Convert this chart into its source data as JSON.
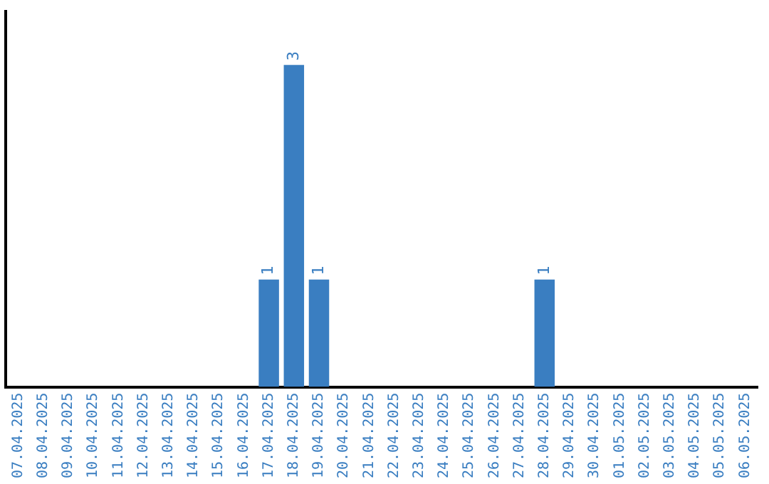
{
  "chart_data": {
    "type": "bar",
    "categories": [
      "07.04.2025",
      "08.04.2025",
      "09.04.2025",
      "10.04.2025",
      "11.04.2025",
      "12.04.2025",
      "13.04.2025",
      "14.04.2025",
      "15.04.2025",
      "16.04.2025",
      "17.04.2025",
      "18.04.2025",
      "19.04.2025",
      "20.04.2025",
      "21.04.2025",
      "22.04.2025",
      "23.04.2025",
      "24.04.2025",
      "25.04.2025",
      "26.04.2025",
      "27.04.2025",
      "28.04.2025",
      "29.04.2025",
      "30.04.2025",
      "01.05.2025",
      "02.05.2025",
      "03.05.2025",
      "04.05.2025",
      "05.05.2025",
      "06.05.2025"
    ],
    "values": [
      0,
      0,
      0,
      0,
      0,
      0,
      0,
      0,
      0,
      0,
      1,
      3,
      1,
      0,
      0,
      0,
      0,
      0,
      0,
      0,
      0,
      1,
      0,
      0,
      0,
      0,
      0,
      0,
      0,
      0
    ],
    "value_labels": [
      null,
      null,
      null,
      null,
      null,
      null,
      null,
      null,
      null,
      null,
      "1",
      "3",
      "1",
      null,
      null,
      null,
      null,
      null,
      null,
      null,
      null,
      "1",
      null,
      null,
      null,
      null,
      null,
      null,
      null,
      null
    ],
    "color": "#3a7ec1",
    "tick_labels": "x",
    "grid": false,
    "legend": false
  }
}
